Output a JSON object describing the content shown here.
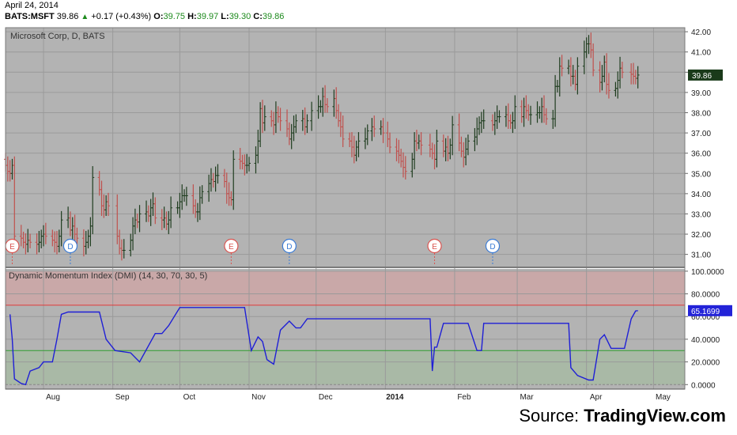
{
  "header": {
    "date": "April 24, 2014",
    "symbol": "BATS:MSFT",
    "last": "39.86",
    "change": "+0.17 (+0.43%)",
    "o_label": "O:",
    "o": "39.75",
    "h_label": "H:",
    "h": "39.97",
    "l_label": "L:",
    "l": "39.30",
    "c_label": "C:",
    "c": "39.86"
  },
  "colors": {
    "pane_bg": "#b3b3b3",
    "up": "#1f3d1f",
    "down": "#c0504d",
    "dmi_line": "#1f1fd6",
    "overbought_line": "#e03a3a",
    "oversold_line": "#2e9e2e",
    "overbought_fill": "#c9a8a8",
    "oversold_fill": "#a9b9a6",
    "price_tag_bg": "#1a3a1a",
    "dmi_tag_bg": "#2323d8"
  },
  "source": {
    "label": "Source: ",
    "brand": "TradingView.com"
  },
  "chart_data": [
    {
      "type": "candlestick",
      "title": "Microsoft Corp, D, BATS",
      "last_price_label": "39.86",
      "ylim": [
        30.4,
        42.2
      ],
      "y_ticks": [
        "42.00",
        "41.00",
        "40.00",
        "39.00",
        "38.00",
        "37.00",
        "36.00",
        "35.00",
        "34.00",
        "33.00",
        "32.00",
        "31.00"
      ],
      "x_ticks": [
        "Aug",
        "Sep",
        "Oct",
        "Nov",
        "Dec",
        "2014",
        "Feb",
        "Mar",
        "Apr",
        "May"
      ],
      "price_path": [
        [
          "2013-07-15",
          35.4
        ],
        [
          "2013-07-16",
          35.1
        ],
        [
          "2013-07-17",
          35.0
        ],
        [
          "2013-07-18",
          35.4
        ],
        [
          "2013-07-19",
          31.9
        ],
        [
          "2013-07-22",
          31.8
        ],
        [
          "2013-07-23",
          31.6
        ],
        [
          "2013-07-24",
          31.5
        ],
        [
          "2013-07-25",
          31.7
        ],
        [
          "2013-07-26",
          31.6
        ],
        [
          "2013-07-29",
          31.5
        ],
        [
          "2013-07-30",
          31.6
        ],
        [
          "2013-07-31",
          31.9
        ],
        [
          "2013-08-01",
          32.0
        ],
        [
          "2013-08-02",
          31.9
        ],
        [
          "2013-08-05",
          31.7
        ],
        [
          "2013-08-06",
          31.6
        ],
        [
          "2013-08-07",
          31.4
        ],
        [
          "2013-08-08",
          31.9
        ],
        [
          "2013-08-09",
          32.7
        ],
        [
          "2013-08-12",
          32.8
        ],
        [
          "2013-08-13",
          32.2
        ],
        [
          "2013-08-14",
          32.4
        ],
        [
          "2013-08-15",
          32.0
        ],
        [
          "2013-08-16",
          31.8
        ],
        [
          "2013-08-19",
          31.4
        ],
        [
          "2013-08-20",
          31.6
        ],
        [
          "2013-08-21",
          31.9
        ],
        [
          "2013-08-22",
          32.4
        ],
        [
          "2013-08-23",
          34.8
        ],
        [
          "2013-08-26",
          34.2
        ],
        [
          "2013-08-27",
          33.4
        ],
        [
          "2013-08-28",
          33.2
        ],
        [
          "2013-08-29",
          33.6
        ],
        [
          "2013-08-30",
          33.4
        ],
        [
          "2013-09-03",
          31.9
        ],
        [
          "2013-09-04",
          31.3
        ],
        [
          "2013-09-05",
          31.2
        ],
        [
          "2013-09-06",
          31.2
        ],
        [
          "2013-09-09",
          31.7
        ],
        [
          "2013-09-10",
          32.4
        ],
        [
          "2013-09-11",
          32.7
        ],
        [
          "2013-09-12",
          32.6
        ],
        [
          "2013-09-13",
          33.0
        ],
        [
          "2013-09-16",
          33.1
        ],
        [
          "2013-09-17",
          32.9
        ],
        [
          "2013-09-18",
          33.3
        ],
        [
          "2013-09-19",
          33.5
        ],
        [
          "2013-09-20",
          32.8
        ],
        [
          "2013-09-23",
          32.7
        ],
        [
          "2013-09-24",
          32.8
        ],
        [
          "2013-09-25",
          32.5
        ],
        [
          "2013-09-26",
          32.7
        ],
        [
          "2013-09-27",
          33.3
        ],
        [
          "2013-09-30",
          33.3
        ],
        [
          "2013-10-01",
          33.6
        ],
        [
          "2013-10-02",
          33.9
        ],
        [
          "2013-10-03",
          33.9
        ],
        [
          "2013-10-04",
          33.9
        ],
        [
          "2013-10-07",
          33.4
        ],
        [
          "2013-10-08",
          33.1
        ],
        [
          "2013-10-09",
          33.1
        ],
        [
          "2013-10-10",
          33.8
        ],
        [
          "2013-10-11",
          34.1
        ],
        [
          "2013-10-14",
          34.5
        ],
        [
          "2013-10-15",
          34.7
        ],
        [
          "2013-10-16",
          34.6
        ],
        [
          "2013-10-17",
          34.9
        ],
        [
          "2013-10-18",
          34.9
        ],
        [
          "2013-10-21",
          34.6
        ],
        [
          "2013-10-22",
          34.0
        ],
        [
          "2013-10-23",
          33.8
        ],
        [
          "2013-10-24",
          33.7
        ],
        [
          "2013-10-25",
          35.7
        ],
        [
          "2013-10-28",
          35.6
        ],
        [
          "2013-10-29",
          35.5
        ],
        [
          "2013-10-30",
          35.4
        ],
        [
          "2013-10-31",
          35.4
        ],
        [
          "2013-11-01",
          35.5
        ],
        [
          "2013-11-04",
          35.9
        ],
        [
          "2013-11-05",
          36.6
        ],
        [
          "2013-11-06",
          38.2
        ],
        [
          "2013-11-07",
          37.5
        ],
        [
          "2013-11-08",
          37.8
        ],
        [
          "2013-11-11",
          37.6
        ],
        [
          "2013-11-12",
          37.4
        ],
        [
          "2013-11-13",
          38.0
        ],
        [
          "2013-11-14",
          37.8
        ],
        [
          "2013-11-15",
          37.6
        ],
        [
          "2013-11-18",
          37.2
        ],
        [
          "2013-11-19",
          36.7
        ],
        [
          "2013-11-20",
          37.0
        ],
        [
          "2013-11-21",
          37.3
        ],
        [
          "2013-11-22",
          37.6
        ],
        [
          "2013-11-25",
          37.7
        ],
        [
          "2013-11-26",
          37.3
        ],
        [
          "2013-11-27",
          37.6
        ],
        [
          "2013-11-29",
          38.1
        ],
        [
          "2013-12-02",
          38.3
        ],
        [
          "2013-12-03",
          38.3
        ],
        [
          "2013-12-04",
          38.8
        ],
        [
          "2013-12-05",
          38.4
        ],
        [
          "2013-12-06",
          38.3
        ],
        [
          "2013-12-09",
          38.7
        ],
        [
          "2013-12-10",
          38.1
        ],
        [
          "2013-12-11",
          37.6
        ],
        [
          "2013-12-12",
          37.3
        ],
        [
          "2013-12-13",
          36.7
        ],
        [
          "2013-12-16",
          36.6
        ],
        [
          "2013-12-17",
          36.3
        ],
        [
          "2013-12-18",
          35.9
        ],
        [
          "2013-12-19",
          36.3
        ],
        [
          "2013-12-20",
          36.6
        ],
        [
          "2013-12-23",
          36.7
        ],
        [
          "2013-12-24",
          37.1
        ],
        [
          "2013-12-26",
          37.3
        ],
        [
          "2013-12-27",
          37.2
        ],
        [
          "2013-12-30",
          37.3
        ],
        [
          "2013-12-31",
          37.0
        ],
        [
          "2014-01-02",
          36.7
        ],
        [
          "2014-01-03",
          36.3
        ],
        [
          "2014-01-06",
          36.1
        ],
        [
          "2014-01-07",
          35.9
        ],
        [
          "2014-01-08",
          35.6
        ],
        [
          "2014-01-09",
          35.3
        ],
        [
          "2014-01-10",
          35.1
        ],
        [
          "2014-01-13",
          35.7
        ],
        [
          "2014-01-14",
          36.6
        ],
        [
          "2014-01-15",
          36.5
        ],
        [
          "2014-01-16",
          36.6
        ],
        [
          "2014-01-17",
          36.4
        ],
        [
          "2014-01-21",
          36.2
        ],
        [
          "2014-01-22",
          36.0
        ],
        [
          "2014-01-23",
          35.7
        ],
        [
          "2014-01-24",
          36.6
        ],
        [
          "2014-01-27",
          36.1
        ],
        [
          "2014-01-28",
          36.3
        ],
        [
          "2014-01-29",
          36.0
        ],
        [
          "2014-01-30",
          36.4
        ],
        [
          "2014-01-31",
          37.4
        ],
        [
          "2014-02-03",
          36.5
        ],
        [
          "2014-02-04",
          36.1
        ],
        [
          "2014-02-05",
          35.8
        ],
        [
          "2014-02-06",
          36.2
        ],
        [
          "2014-02-07",
          36.6
        ],
        [
          "2014-02-10",
          36.8
        ],
        [
          "2014-02-11",
          37.2
        ],
        [
          "2014-02-12",
          37.5
        ],
        [
          "2014-02-13",
          37.6
        ],
        [
          "2014-02-14",
          37.6
        ],
        [
          "2014-02-18",
          37.4
        ],
        [
          "2014-02-19",
          37.6
        ],
        [
          "2014-02-20",
          37.8
        ],
        [
          "2014-02-21",
          37.8
        ],
        [
          "2014-02-24",
          37.9
        ],
        [
          "2014-02-25",
          37.6
        ],
        [
          "2014-02-26",
          37.5
        ],
        [
          "2014-02-27",
          37.6
        ],
        [
          "2014-02-28",
          38.3
        ],
        [
          "2014-03-03",
          37.8
        ],
        [
          "2014-03-04",
          38.3
        ],
        [
          "2014-03-05",
          38.1
        ],
        [
          "2014-03-06",
          37.9
        ],
        [
          "2014-03-07",
          37.9
        ],
        [
          "2014-03-10",
          38.0
        ],
        [
          "2014-03-11",
          38.0
        ],
        [
          "2014-03-12",
          38.3
        ],
        [
          "2014-03-13",
          37.9
        ],
        [
          "2014-03-14",
          37.7
        ],
        [
          "2014-03-17",
          37.7
        ],
        [
          "2014-03-18",
          39.3
        ],
        [
          "2014-03-19",
          39.3
        ],
        [
          "2014-03-20",
          40.3
        ],
        [
          "2014-03-21",
          40.2
        ],
        [
          "2014-03-24",
          40.3
        ],
        [
          "2014-03-25",
          39.8
        ],
        [
          "2014-03-26",
          39.8
        ],
        [
          "2014-03-27",
          39.4
        ],
        [
          "2014-03-28",
          40.3
        ],
        [
          "2014-03-31",
          41.0
        ],
        [
          "2014-04-01",
          41.4
        ],
        [
          "2014-04-02",
          41.4
        ],
        [
          "2014-04-03",
          41.1
        ],
        [
          "2014-04-04",
          40.1
        ],
        [
          "2014-04-07",
          39.5
        ],
        [
          "2014-04-08",
          39.8
        ],
        [
          "2014-04-09",
          40.5
        ],
        [
          "2014-04-10",
          39.4
        ],
        [
          "2014-04-11",
          39.1
        ],
        [
          "2014-04-14",
          39.2
        ],
        [
          "2014-04-15",
          39.6
        ],
        [
          "2014-04-16",
          40.2
        ],
        [
          "2014-04-17",
          40.0
        ],
        [
          "2014-04-21",
          39.9
        ],
        [
          "2014-04-22",
          39.8
        ],
        [
          "2014-04-23",
          39.7
        ],
        [
          "2014-04-24",
          39.86
        ]
      ],
      "markers": [
        {
          "label": "E",
          "kind": "earnings",
          "date": "2013-07-18"
        },
        {
          "label": "D",
          "kind": "dividend",
          "date": "2013-08-13"
        },
        {
          "label": "E",
          "kind": "earnings",
          "date": "2013-10-24"
        },
        {
          "label": "D",
          "kind": "dividend",
          "date": "2013-11-19"
        },
        {
          "label": "E",
          "kind": "earnings",
          "date": "2014-01-23"
        },
        {
          "label": "D",
          "kind": "dividend",
          "date": "2014-02-18"
        }
      ]
    },
    {
      "type": "line",
      "title": "Dynamic Momentum Index (DMI)  (14, 30, 70, 30, 5)",
      "last_value_label": "65.1699",
      "ylim": [
        -4,
        102
      ],
      "y_ticks": [
        "100.0000",
        "80.0000",
        "60.0000",
        "40.0000",
        "20.0000",
        "0.0000"
      ],
      "overbought": 70,
      "oversold": 30,
      "series": [
        {
          "values": [
            [
              "2013-07-17",
              62
            ],
            [
              "2013-07-18",
              40
            ],
            [
              "2013-07-19",
              5
            ],
            [
              "2013-07-22",
              1
            ],
            [
              "2013-07-24",
              0
            ],
            [
              "2013-07-26",
              12
            ],
            [
              "2013-07-30",
              15
            ],
            [
              "2013-08-01",
              20
            ],
            [
              "2013-08-05",
              20
            ],
            [
              "2013-08-07",
              40
            ],
            [
              "2013-08-09",
              62
            ],
            [
              "2013-08-12",
              64
            ],
            [
              "2013-08-26",
              64
            ],
            [
              "2013-08-29",
              40
            ],
            [
              "2013-09-02",
              30
            ],
            [
              "2013-09-09",
              28
            ],
            [
              "2013-09-13",
              20
            ],
            [
              "2013-09-20",
              45
            ],
            [
              "2013-09-23",
              45
            ],
            [
              "2013-09-26",
              52
            ],
            [
              "2013-10-01",
              68
            ],
            [
              "2013-10-03",
              68
            ],
            [
              "2013-10-30",
              68
            ],
            [
              "2013-11-02",
              30
            ],
            [
              "2013-11-05",
              42
            ],
            [
              "2013-11-07",
              38
            ],
            [
              "2013-11-09",
              22
            ],
            [
              "2013-11-12",
              18
            ],
            [
              "2013-11-15",
              48
            ],
            [
              "2013-11-19",
              56
            ],
            [
              "2013-11-22",
              50
            ],
            [
              "2013-11-24",
              50
            ],
            [
              "2013-11-27",
              58
            ],
            [
              "2013-12-01",
              58
            ],
            [
              "2014-01-21",
              58
            ],
            [
              "2014-01-22",
              12
            ],
            [
              "2014-01-23",
              33
            ],
            [
              "2014-01-24",
              33
            ],
            [
              "2014-01-27",
              54
            ],
            [
              "2014-01-29",
              54
            ],
            [
              "2014-02-07",
              54
            ],
            [
              "2014-02-11",
              30
            ],
            [
              "2014-02-13",
              30
            ],
            [
              "2014-02-14",
              54
            ],
            [
              "2014-02-18",
              54
            ],
            [
              "2014-03-24",
              54
            ],
            [
              "2014-03-25",
              15
            ],
            [
              "2014-03-28",
              8
            ],
            [
              "2014-04-02",
              4
            ],
            [
              "2014-04-04",
              4
            ],
            [
              "2014-04-07",
              40
            ],
            [
              "2014-04-09",
              44
            ],
            [
              "2014-04-12",
              32
            ],
            [
              "2014-04-15",
              32
            ],
            [
              "2014-04-18",
              32
            ],
            [
              "2014-04-21",
              58
            ],
            [
              "2014-04-23",
              65
            ],
            [
              "2014-04-24",
              65.1699
            ]
          ]
        }
      ]
    }
  ]
}
